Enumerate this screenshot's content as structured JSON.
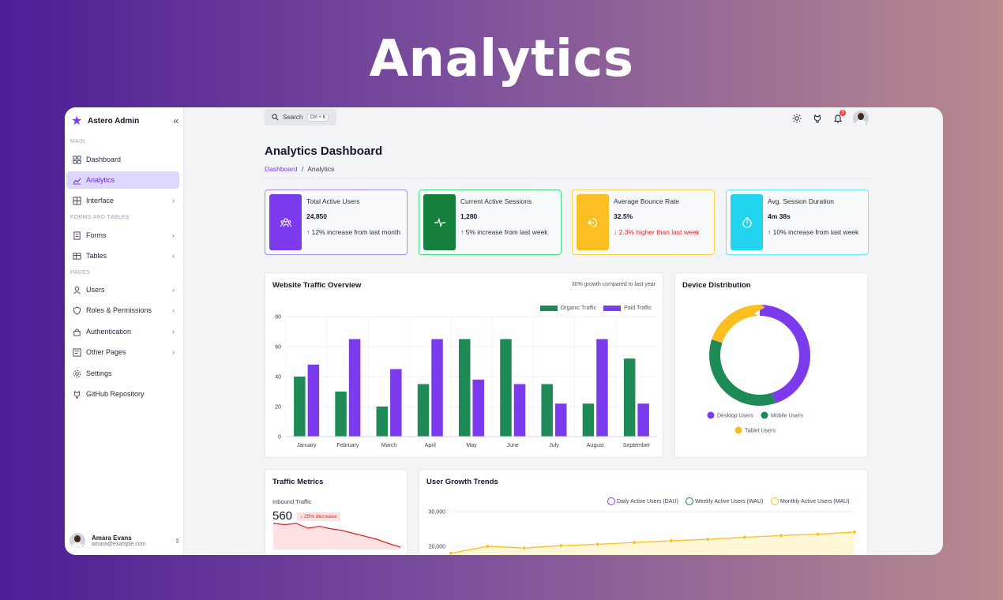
{
  "hero_title": "Analytics",
  "sidebar": {
    "brand": "Astero Admin",
    "sections": {
      "main": "MAIN",
      "forms": "FORMS AND TABLES",
      "pages": "PAGES"
    },
    "items": [
      {
        "label": "Dashboard"
      },
      {
        "label": "Analytics"
      },
      {
        "label": "Interface"
      },
      {
        "label": "Forms"
      },
      {
        "label": "Tables"
      },
      {
        "label": "Users"
      },
      {
        "label": "Roles & Permissions"
      },
      {
        "label": "Authentication"
      },
      {
        "label": "Other Pages"
      },
      {
        "label": "Settings"
      },
      {
        "label": "GitHub Repository"
      }
    ],
    "user": {
      "name": "Amara Evans",
      "email": "amara@example.com"
    }
  },
  "topbar": {
    "search_label": "Search",
    "search_shortcut": "Ctrl + K",
    "notification_count": "3"
  },
  "page": {
    "title": "Analytics Dashboard",
    "breadcrumb_root": "Dashboard",
    "breadcrumb_sep": "/",
    "breadcrumb_current": "Analytics"
  },
  "stats": [
    {
      "title": "Total Active Users",
      "value": "24,850",
      "change": "↑ 12% increase from last month",
      "color": "#7c3aed",
      "icon": "users-icon"
    },
    {
      "title": "Current Active Sessions",
      "value": "1,280",
      "change": "↑ 5% increase from last week",
      "color": "#15803d",
      "icon": "activity-icon"
    },
    {
      "title": "Average Bounce Rate",
      "value": "32.5%",
      "change": "↓ 2.3% higher than last week",
      "color": "#fbbf24",
      "icon": "exit-icon"
    },
    {
      "title": "Avg. Session Duration",
      "value": "4m 38s",
      "change": "↑ 10% increase from last week",
      "color": "#22d3ee",
      "icon": "timer-icon"
    }
  ],
  "traffic": {
    "title": "Website Traffic Overview",
    "note": "30% growth compared to last year"
  },
  "device": {
    "title": "Device Distribution"
  },
  "metrics": {
    "title": "Traffic Metrics",
    "label": "Inbound Traffic",
    "value": "560",
    "change": "↓ 25% decrease"
  },
  "growth": {
    "title": "User Growth Trends"
  },
  "chart_data": [
    {
      "type": "bar",
      "title": "Website Traffic Overview",
      "categories": [
        "January",
        "February",
        "March",
        "April",
        "May",
        "June",
        "July",
        "August",
        "September"
      ],
      "series": [
        {
          "name": "Organic Traffic",
          "color": "#1e8a55",
          "values": [
            40,
            30,
            20,
            35,
            65,
            65,
            35,
            22,
            52
          ]
        },
        {
          "name": "Paid Traffic",
          "color": "#7c3aed",
          "values": [
            48,
            65,
            45,
            65,
            38,
            35,
            22,
            65,
            22
          ]
        }
      ],
      "yticks": [
        0,
        20,
        40,
        60,
        80
      ],
      "ylim": [
        0,
        80
      ],
      "legend": "top-right"
    },
    {
      "type": "pie",
      "title": "Device Distribution",
      "labels": [
        "Desktop Users",
        "Mobile Users",
        "Tablet Users"
      ],
      "values": [
        45,
        35,
        20
      ],
      "colors": [
        "#7c3aed",
        "#1e8a55",
        "#fbbf24"
      ]
    },
    {
      "type": "area",
      "title": "Inbound Traffic",
      "values": [
        44,
        42,
        44,
        36,
        39,
        35,
        32,
        27,
        22,
        17,
        10,
        4
      ],
      "color": "#dc2626"
    },
    {
      "type": "line",
      "title": "User Growth Trends",
      "legend": [
        "Daily Active Users (DAU)",
        "Weekly Active Users (WAU)",
        "Monthly Active Users (MAU)"
      ],
      "legend_colors": [
        "#7c3aed",
        "#15803d",
        "#fbbf24"
      ],
      "yticks": [
        "30,000",
        "20,000"
      ],
      "series": [
        {
          "name": "Monthly Active Users (MAU)",
          "values": [
            18000,
            20000,
            19500,
            20200,
            20600,
            21100,
            21600,
            22000,
            22600,
            23100,
            23500,
            24100
          ]
        }
      ]
    }
  ]
}
